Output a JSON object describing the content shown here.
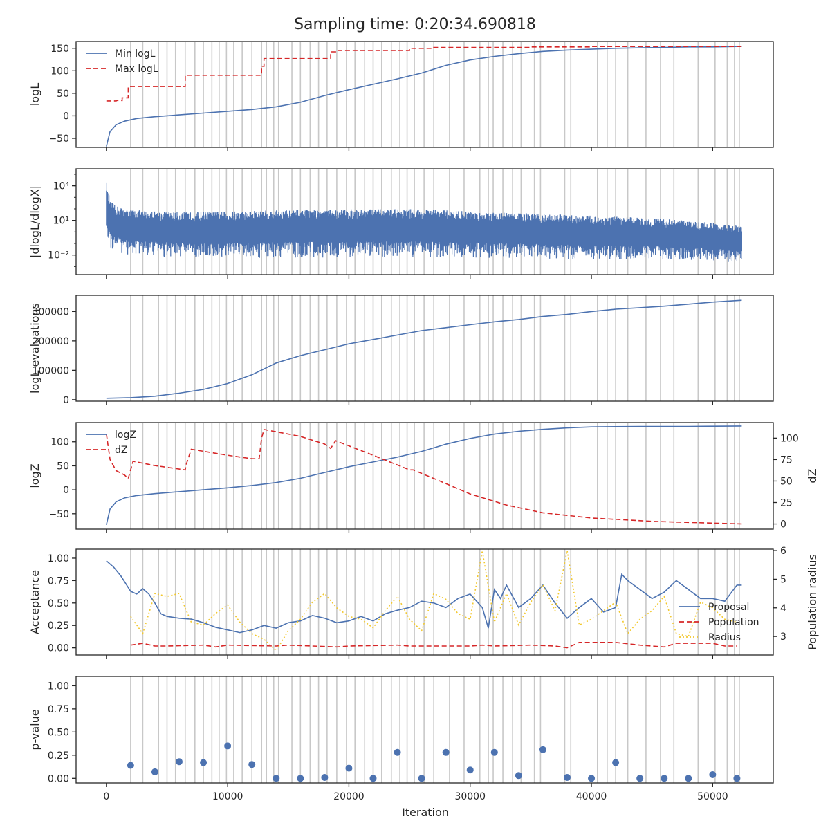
{
  "title": "Sampling time: 0:20:34.690818",
  "colors": {
    "blue": "#4c72b0",
    "red": "#d62728",
    "yellow": "#f2c82e",
    "vline": "#c8c8c8",
    "axis": "#262626"
  },
  "xaxis": {
    "label": "Iteration",
    "range": [
      -2500,
      55000
    ],
    "ticks": [
      0,
      10000,
      20000,
      30000,
      40000,
      50000
    ],
    "tick_labels": [
      "0",
      "10000",
      "20000",
      "30000",
      "40000",
      "50000"
    ]
  },
  "chart_data": [
    {
      "type": "line",
      "ylabel": "logL",
      "ylim": [
        -70,
        165
      ],
      "yticks": [
        -50,
        0,
        50,
        100,
        150
      ],
      "ytick_labels": [
        "−50",
        "0",
        "50",
        "100",
        "150"
      ],
      "legend": "top-left",
      "series": [
        {
          "name": "Min logL",
          "style": "solid",
          "color": "blue",
          "x": [
            0,
            300,
            800,
            1500,
            2500,
            4000,
            6000,
            8000,
            10000,
            12000,
            14000,
            16000,
            18000,
            20000,
            22000,
            24000,
            26000,
            28000,
            30000,
            32000,
            34000,
            36000,
            38000,
            40000,
            42000,
            44000,
            46000,
            48000,
            50000,
            52000,
            52400
          ],
          "y": [
            -68,
            -35,
            -20,
            -12,
            -6,
            -2,
            2,
            6,
            10,
            14,
            20,
            30,
            45,
            58,
            70,
            82,
            95,
            112,
            124,
            132,
            138,
            143,
            146,
            148,
            150,
            151,
            152,
            153,
            153,
            154,
            154
          ]
        },
        {
          "name": "Max logL",
          "style": "dashed",
          "color": "red",
          "x": [
            0,
            800,
            800,
            1300,
            1300,
            1800,
            1800,
            6500,
            6500,
            12800,
            12800,
            13000,
            13000,
            18500,
            18500,
            19000,
            19000,
            25000,
            25000,
            27000,
            27000,
            35000,
            35000,
            40000,
            40000,
            52400
          ],
          "y": [
            33,
            33,
            34,
            34,
            40,
            40,
            65,
            65,
            90,
            90,
            110,
            110,
            127,
            127,
            142,
            142,
            145,
            145,
            150,
            150,
            152,
            152,
            153,
            153,
            154,
            154
          ]
        }
      ]
    },
    {
      "type": "line",
      "ylabel": "|dlogL/dlogX|",
      "yscale": "log",
      "ylim": [
        0.0002,
        300000
      ],
      "yticks": [
        0.01,
        10,
        10000
      ],
      "ytick_labels": [
        "10⁻²",
        "10¹",
        "10⁴"
      ],
      "series": [
        {
          "name": "",
          "style": "noisy-fill",
          "color": "blue",
          "x": [
            0,
            100,
            300,
            700,
            1500,
            3000,
            6000,
            10000,
            15000,
            20000,
            25000,
            30000,
            35000,
            40000,
            45000,
            50000,
            52400
          ],
          "upper": [
            30000,
            3000,
            500,
            200,
            100,
            70,
            50,
            60,
            80,
            90,
            100,
            60,
            40,
            25,
            15,
            6,
            3
          ],
          "lower": [
            1,
            0.1,
            0.03,
            0.02,
            0.01,
            0.008,
            0.006,
            0.005,
            0.006,
            0.006,
            0.007,
            0.006,
            0.005,
            0.004,
            0.004,
            0.003,
            0.002
          ]
        }
      ]
    },
    {
      "type": "line",
      "ylabel": "logL evaluations",
      "ylim": [
        -5000,
        355000
      ],
      "yticks": [
        0,
        100000,
        200000,
        300000
      ],
      "ytick_labels": [
        "0",
        "100000",
        "200000",
        "300000"
      ],
      "series": [
        {
          "name": "",
          "style": "solid",
          "color": "blue",
          "x": [
            0,
            2000,
            4000,
            6000,
            8000,
            10000,
            12000,
            14000,
            16000,
            18000,
            20000,
            22000,
            24000,
            26000,
            28000,
            30000,
            32000,
            34000,
            36000,
            38000,
            40000,
            42000,
            44000,
            46000,
            48000,
            50000,
            52400
          ],
          "y": [
            5000,
            7000,
            12000,
            22000,
            35000,
            55000,
            85000,
            125000,
            150000,
            170000,
            190000,
            205000,
            220000,
            235000,
            245000,
            255000,
            265000,
            273000,
            283000,
            290000,
            300000,
            308000,
            313000,
            318000,
            325000,
            332000,
            338000
          ]
        }
      ]
    },
    {
      "type": "line",
      "ylabel": "logZ",
      "ylim": [
        -82,
        140
      ],
      "yticks": [
        -50,
        0,
        50,
        100
      ],
      "ytick_labels": [
        "−50",
        "0",
        "50",
        "100"
      ],
      "y2label": "dZ",
      "y2lim": [
        -6,
        118
      ],
      "y2ticks": [
        0,
        25,
        50,
        75,
        100
      ],
      "y2tick_labels": [
        "0",
        "25",
        "50",
        "75",
        "100"
      ],
      "legend": "top-left",
      "series": [
        {
          "name": "logZ",
          "style": "solid",
          "color": "blue",
          "axis": "left",
          "x": [
            0,
            300,
            800,
            1500,
            2500,
            4000,
            6000,
            8000,
            10000,
            12000,
            14000,
            16000,
            18000,
            20000,
            22000,
            24000,
            26000,
            28000,
            30000,
            32000,
            34000,
            36000,
            38000,
            40000,
            44000,
            48000,
            52400
          ],
          "y": [
            -73,
            -40,
            -25,
            -17,
            -12,
            -8,
            -4,
            0,
            4,
            9,
            15,
            24,
            36,
            48,
            58,
            68,
            80,
            95,
            107,
            116,
            122,
            126,
            129,
            131,
            132,
            132,
            133
          ]
        },
        {
          "name": "dZ",
          "style": "dashed",
          "color": "red",
          "axis": "right",
          "x": [
            0,
            300,
            800,
            1500,
            1800,
            2200,
            4000,
            6500,
            6600,
            7000,
            10000,
            12000,
            12600,
            12800,
            13000,
            16000,
            18000,
            18500,
            18900,
            22000,
            25000,
            25300,
            27000,
            30000,
            33000,
            36000,
            40000,
            45000,
            50000,
            52400
          ],
          "y": [
            105,
            75,
            62,
            57,
            53,
            73,
            68,
            63,
            70,
            87,
            80,
            76,
            76,
            100,
            110,
            102,
            93,
            88,
            97,
            80,
            63,
            63,
            53,
            35,
            22,
            13,
            7,
            3,
            1,
            0
          ]
        }
      ]
    },
    {
      "type": "line",
      "ylabel": "Acceptance",
      "ylim": [
        -0.08,
        1.1
      ],
      "yticks": [
        0.0,
        0.25,
        0.5,
        0.75,
        1.0
      ],
      "ytick_labels": [
        "0.00",
        "0.25",
        "0.50",
        "0.75",
        "1.00"
      ],
      "y2label": "Population radius",
      "y2lim": [
        2.35,
        6.05
      ],
      "y2ticks": [
        3,
        4,
        5,
        6
      ],
      "y2tick_labels": [
        "3",
        "4",
        "5",
        "6"
      ],
      "legend": "center-right",
      "series": [
        {
          "name": "Proposal",
          "style": "solid",
          "color": "blue",
          "axis": "left",
          "x": [
            0,
            600,
            1200,
            2000,
            2500,
            3000,
            3500,
            4000,
            4500,
            5000,
            6000,
            7000,
            8000,
            9000,
            10000,
            11000,
            12000,
            13000,
            14000,
            15000,
            16000,
            17000,
            18000,
            19000,
            20000,
            21000,
            22000,
            23000,
            24000,
            25000,
            26000,
            27000,
            28000,
            29000,
            30000,
            31000,
            31500,
            32000,
            32500,
            33000,
            34000,
            35000,
            36000,
            37000,
            38000,
            39000,
            40000,
            41000,
            42000,
            42500,
            43000,
            44000,
            45000,
            46000,
            47000,
            48000,
            49000,
            50000,
            51000,
            52000,
            52400
          ],
          "y": [
            0.97,
            0.9,
            0.8,
            0.63,
            0.6,
            0.66,
            0.6,
            0.5,
            0.38,
            0.35,
            0.33,
            0.32,
            0.28,
            0.23,
            0.2,
            0.17,
            0.2,
            0.25,
            0.22,
            0.28,
            0.3,
            0.36,
            0.33,
            0.28,
            0.3,
            0.35,
            0.3,
            0.38,
            0.42,
            0.45,
            0.52,
            0.5,
            0.45,
            0.55,
            0.6,
            0.45,
            0.22,
            0.65,
            0.55,
            0.7,
            0.45,
            0.55,
            0.7,
            0.5,
            0.33,
            0.45,
            0.55,
            0.4,
            0.45,
            0.82,
            0.75,
            0.65,
            0.55,
            0.62,
            0.75,
            0.65,
            0.55,
            0.55,
            0.52,
            0.7,
            0.7
          ]
        },
        {
          "name": "Population",
          "style": "dashed",
          "color": "red",
          "axis": "left",
          "x": [
            2000,
            3000,
            4000,
            5000,
            8000,
            9000,
            10000,
            14000,
            15000,
            19000,
            20000,
            24000,
            25000,
            30000,
            31000,
            32000,
            35000,
            37000,
            38000,
            39000,
            42000,
            44000,
            46000,
            47000,
            50000,
            51000,
            52000
          ],
          "y": [
            0.03,
            0.05,
            0.02,
            0.02,
            0.03,
            0.01,
            0.03,
            0.02,
            0.03,
            0.01,
            0.02,
            0.03,
            0.02,
            0.02,
            0.03,
            0.02,
            0.03,
            0.02,
            0.0,
            0.06,
            0.06,
            0.03,
            0.01,
            0.05,
            0.05,
            0.02,
            0.02
          ]
        },
        {
          "name": "Radius",
          "style": "dotted",
          "color": "yellow",
          "axis": "right",
          "x": [
            2000,
            3000,
            4000,
            5000,
            6000,
            7000,
            8000,
            9000,
            10000,
            11000,
            12000,
            13000,
            14000,
            15000,
            16000,
            17000,
            18000,
            19000,
            20000,
            21000,
            22000,
            23000,
            24000,
            25000,
            26000,
            27000,
            28000,
            29000,
            30000,
            31000,
            32000,
            33000,
            34000,
            35000,
            36000,
            37000,
            38000,
            39000,
            40000,
            41000,
            42000,
            43000,
            44000,
            45000,
            46000,
            47000,
            48000,
            49000,
            50000,
            51000,
            52000
          ],
          "y": [
            3.7,
            3.1,
            4.5,
            4.4,
            4.5,
            3.5,
            3.4,
            3.8,
            4.1,
            3.5,
            3.1,
            2.9,
            2.5,
            3.2,
            3.6,
            4.2,
            4.5,
            4.0,
            3.7,
            3.6,
            3.3,
            3.9,
            4.4,
            3.6,
            3.2,
            4.5,
            4.3,
            3.8,
            3.6,
            6.0,
            3.5,
            4.5,
            3.4,
            4.2,
            4.8,
            3.9,
            6.0,
            3.4,
            3.6,
            3.9,
            4.2,
            3.1,
            3.6,
            3.9,
            4.4,
            3.1,
            3.0,
            4.2,
            4.0,
            3.6,
            3.5
          ]
        }
      ]
    },
    {
      "type": "scatter",
      "ylabel": "p-value",
      "ylim": [
        -0.05,
        1.1
      ],
      "yticks": [
        0.0,
        0.25,
        0.5,
        0.75,
        1.0
      ],
      "ytick_labels": [
        "0.00",
        "0.25",
        "0.50",
        "0.75",
        "1.00"
      ],
      "series": [
        {
          "name": "",
          "color": "blue",
          "x": [
            2000,
            4000,
            6000,
            8000,
            10000,
            12000,
            14000,
            16000,
            18000,
            20000,
            22000,
            24000,
            26000,
            28000,
            30000,
            32000,
            34000,
            36000,
            38000,
            40000,
            42000,
            44000,
            46000,
            48000,
            50000,
            52000
          ],
          "y": [
            0.14,
            0.07,
            0.18,
            0.17,
            0.35,
            0.15,
            0.0,
            0.0,
            0.01,
            0.11,
            0.0,
            0.28,
            0.0,
            0.28,
            0.09,
            0.28,
            0.03,
            0.31,
            0.01,
            0.0,
            0.17,
            0.0,
            0.0,
            0.0,
            0.04,
            0.0
          ]
        }
      ]
    }
  ],
  "vlines": [
    2000,
    3000,
    4300,
    5000,
    5700,
    6500,
    7300,
    8000,
    8700,
    9300,
    9900,
    10500,
    11200,
    12000,
    12800,
    13200,
    13800,
    14200,
    15300,
    16000,
    16800,
    17500,
    18200,
    19000,
    19800,
    20500,
    21300,
    22000,
    22700,
    23500,
    24200,
    24800,
    25400,
    26200,
    27000,
    28300,
    29500,
    30800,
    31500,
    31900,
    32700,
    33500,
    34200,
    35300,
    35800,
    37800,
    38300,
    40500,
    41300,
    42000,
    43000,
    44500,
    45700,
    46800,
    48800,
    50200,
    51200,
    51800,
    52200
  ]
}
